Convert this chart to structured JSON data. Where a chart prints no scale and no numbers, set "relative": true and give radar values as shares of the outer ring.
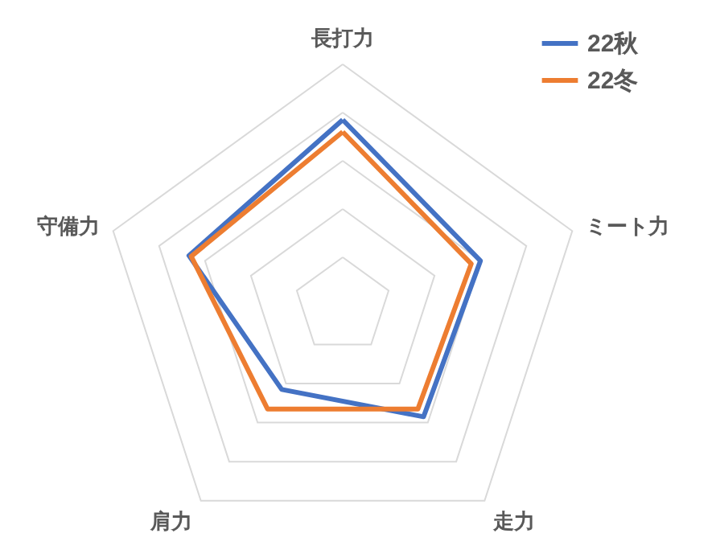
{
  "chart_data": {
    "type": "radar",
    "relative": true,
    "categories": [
      "長打力",
      "ミート力",
      "走力",
      "肩力",
      "守備力"
    ],
    "series": [
      {
        "name": "22秋",
        "color": "#4472c4",
        "values": [
          0.77,
          0.6,
          0.57,
          0.43,
          0.67
        ]
      },
      {
        "name": "22冬",
        "color": "#ed7d31",
        "values": [
          0.72,
          0.56,
          0.53,
          0.53,
          0.66
        ]
      }
    ],
    "grid": true,
    "legend": "top right"
  }
}
